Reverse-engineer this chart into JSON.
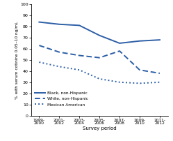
{
  "x_labels": [
    "1999-\n2000",
    "2001-\n2002",
    "2003-\n2004",
    "2005-\n2006",
    "2007-\n2008",
    "2009-\n2010",
    "2011-\n2012"
  ],
  "x_positions": [
    0,
    1,
    2,
    3,
    4,
    5,
    6
  ],
  "black_nonhispanic": [
    84,
    82,
    81,
    72,
    65,
    67,
    68
  ],
  "white_nonhispanic": [
    63,
    57,
    54,
    52,
    58,
    41,
    38
  ],
  "mexican_american": [
    48,
    44,
    41,
    33,
    30,
    29,
    30
  ],
  "line_color": "#2d5fa6",
  "ylabel": "% with serum cotinine 0.05–10 ng/mL",
  "xlabel": "Survey period",
  "ylim": [
    0,
    100
  ],
  "yticks": [
    0,
    10,
    20,
    30,
    40,
    50,
    60,
    70,
    80,
    90,
    100
  ],
  "legend_labels": [
    "Black, non-Hispanic",
    "White, non-Hispanic",
    "Mexican American"
  ],
  "figsize": [
    2.49,
    2.02
  ],
  "dpi": 100
}
